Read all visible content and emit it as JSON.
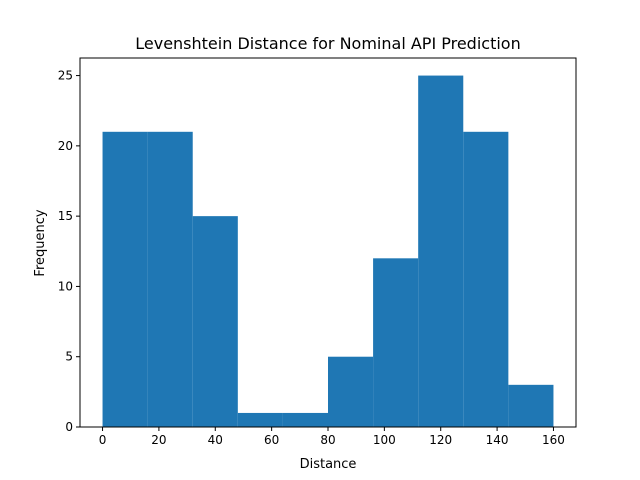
{
  "chart_data": {
    "type": "histogram",
    "title": "Levenshtein Distance for Nominal API Prediction",
    "xlabel": "Distance",
    "ylabel": "Frequency",
    "bins": [
      0,
      16,
      32,
      48,
      64,
      80,
      96,
      112,
      128,
      144,
      160
    ],
    "values": [
      21,
      21,
      15,
      1,
      1,
      5,
      12,
      25,
      21,
      3
    ],
    "color": "#1f77b4",
    "xlim": [
      -8,
      168
    ],
    "xticks": [
      0,
      20,
      40,
      60,
      80,
      100,
      120,
      140,
      160
    ],
    "ylim": [
      0,
      26.25
    ],
    "yticks": [
      0,
      5,
      10,
      15,
      20,
      25
    ]
  }
}
